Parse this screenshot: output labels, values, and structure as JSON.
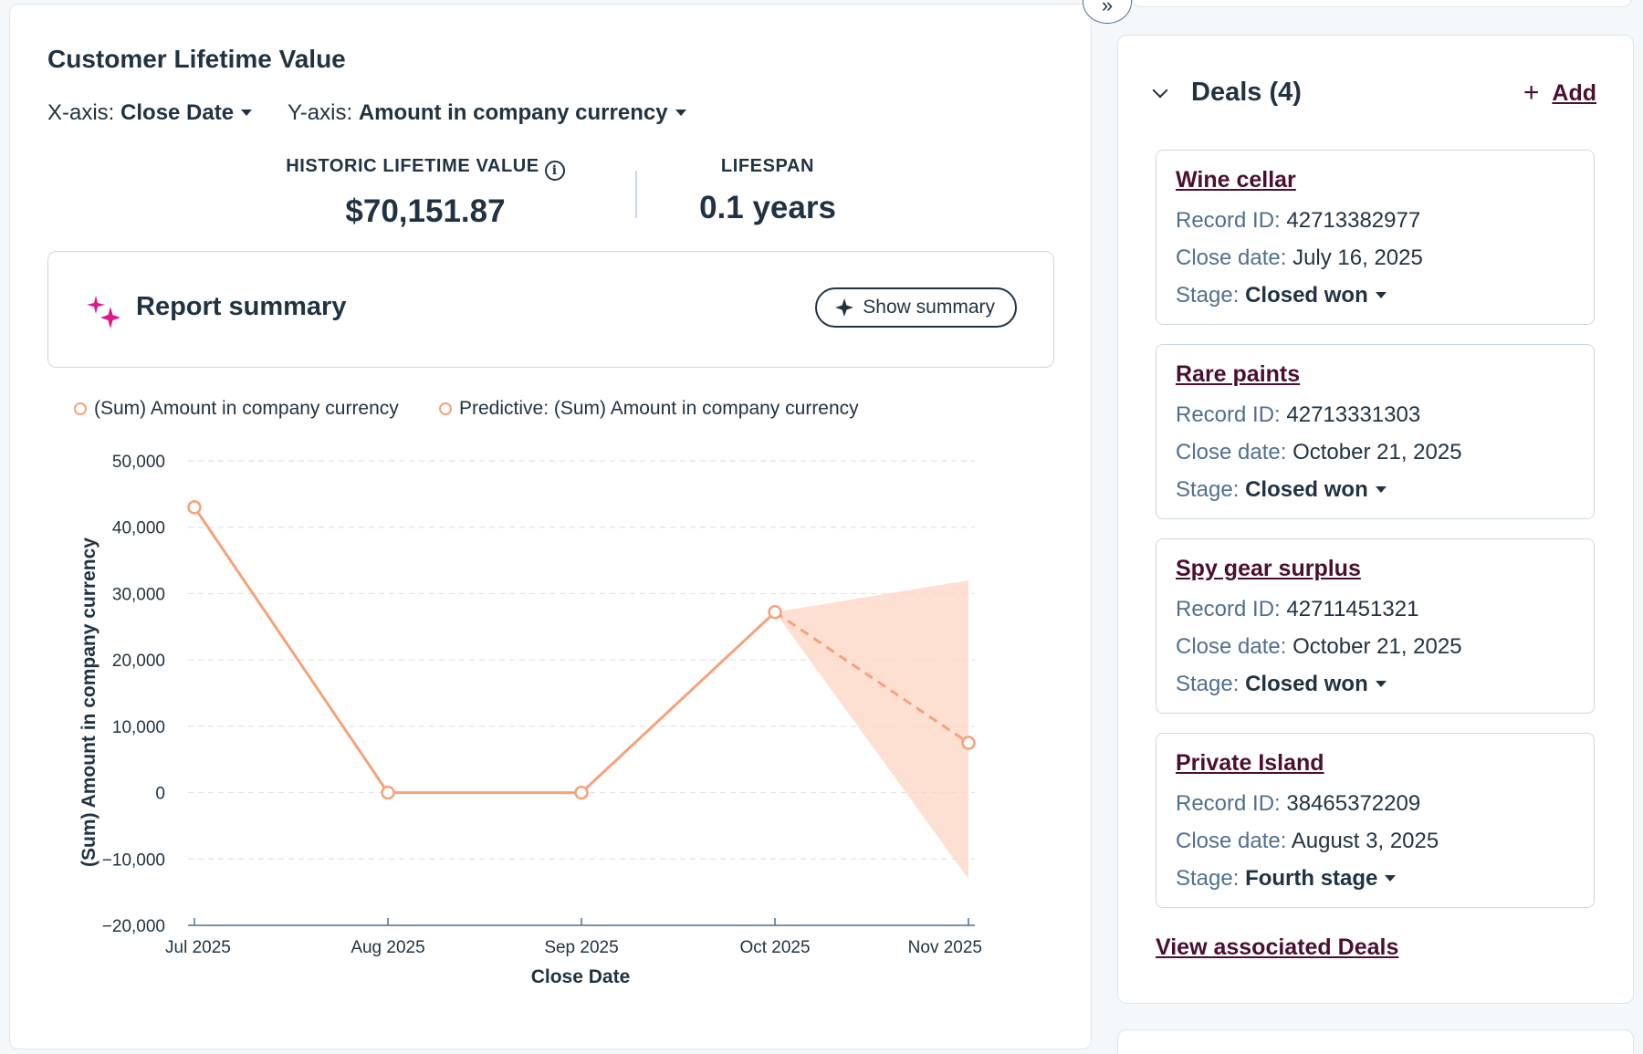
{
  "report": {
    "title": "Customer Lifetime Value",
    "x_axis_label": "X-axis:",
    "x_axis_value": "Close Date",
    "y_axis_label": "Y-axis:",
    "y_axis_value": "Amount in company currency",
    "historic_label": "HISTORIC LIFETIME VALUE",
    "historic_value": "$70,151.87",
    "lifespan_label": "LIFESPAN",
    "lifespan_value": "0.1 years",
    "summary_title": "Report summary",
    "show_summary_label": "Show summary"
  },
  "colors": {
    "series": "#f5a27a",
    "band": "#fdd5c4",
    "accent": "#4a0f31",
    "sparkle": "#e0168a"
  },
  "chart_data": {
    "type": "line",
    "categories": [
      "Jul 2025",
      "Aug 2025",
      "Sep 2025",
      "Oct 2025",
      "Nov 2025"
    ],
    "series": [
      {
        "name": "(Sum) Amount in company currency",
        "values": [
          43000,
          0,
          0,
          27200,
          null
        ]
      },
      {
        "name": "Predictive: (Sum) Amount in company currency",
        "values": [
          null,
          null,
          null,
          27200,
          7500
        ]
      }
    ],
    "prediction_band": {
      "from": "Oct 2025",
      "to": "Nov 2025",
      "upper": [
        27200,
        32000
      ],
      "lower": [
        27200,
        -13000
      ]
    },
    "yticks": [
      "50,000",
      "40,000",
      "30,000",
      "20,000",
      "10,000",
      "0",
      "−10,000",
      "−20,000"
    ],
    "ylim": [
      -20000,
      50000
    ],
    "xlabel": "Close Date",
    "ylabel": "(Sum) Amount in company currency",
    "grid": true,
    "legend": "top-left"
  },
  "deals": {
    "title": "Deals (4)",
    "add_label": "Add",
    "record_id_label": "Record ID:",
    "close_date_label": "Close date:",
    "stage_label": "Stage:",
    "items": [
      {
        "name": "Wine cellar",
        "record_id": "42713382977",
        "close_date": "July 16, 2025",
        "stage": "Closed won"
      },
      {
        "name": "Rare paints",
        "record_id": "42713331303",
        "close_date": "October 21, 2025",
        "stage": "Closed won"
      },
      {
        "name": "Spy gear surplus",
        "record_id": "42711451321",
        "close_date": "October 21, 2025",
        "stage": "Closed won"
      },
      {
        "name": "Private Island",
        "record_id": "38465372209",
        "close_date": "August 3, 2025",
        "stage": "Fourth stage"
      }
    ],
    "view_all_label": "View associated Deals"
  }
}
